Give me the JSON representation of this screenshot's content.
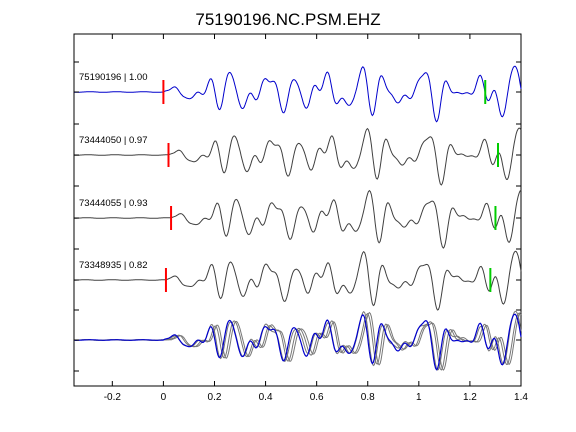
{
  "chart_data": {
    "type": "line",
    "title": "75190196.NC.PSM.EHZ",
    "xlabel": "",
    "ylabel": "",
    "xlim": [
      -0.35,
      1.4
    ],
    "x_ticks": [
      -0.2,
      0,
      0.2,
      0.4,
      0.6,
      0.8,
      1,
      1.2,
      1.4
    ],
    "x_tick_labels": [
      "-0.2",
      "0",
      "0.2",
      "0.4",
      "0.6",
      "0.8",
      "1",
      "1.2",
      "1.4"
    ],
    "grid": false,
    "colors": {
      "reference_trace": "#0000cc",
      "other_trace": "#404040",
      "stack_trace": "#777777",
      "p_pick": "#ff0000",
      "s_pick": "#00cc00"
    },
    "traces": [
      {
        "label": "75190196 | 1.00",
        "event_id": "75190196",
        "cc": 1.0,
        "p_pick": 0.0,
        "s_pick": 1.26,
        "color": "blue"
      },
      {
        "label": "73444050 | 0.97",
        "event_id": "73444050",
        "cc": 0.97,
        "p_pick": 0.02,
        "s_pick": 1.31,
        "color": "gray"
      },
      {
        "label": "73444055 | 0.93",
        "event_id": "73444055",
        "cc": 0.93,
        "p_pick": 0.03,
        "s_pick": 1.3,
        "color": "gray"
      },
      {
        "label": "73348935 | 0.82",
        "event_id": "73348935",
        "cc": 0.82,
        "p_pick": 0.01,
        "s_pick": 1.28,
        "color": "gray"
      }
    ],
    "stack_panel": true
  }
}
